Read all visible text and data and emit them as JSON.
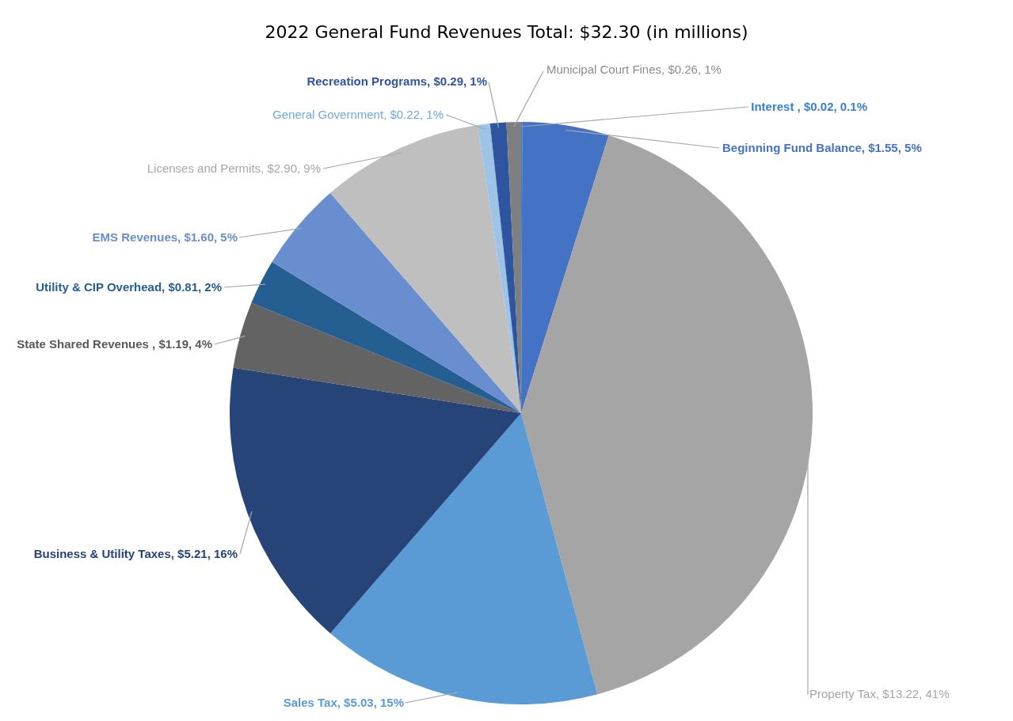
{
  "chart_data": {
    "type": "pie",
    "title": "2022 General Fund Revenues Total: $32.30 (in millions)",
    "categories": [
      "Interest ",
      "Beginning Fund Balance",
      "Property Tax",
      "Sales Tax",
      "Business & Utility Taxes",
      "State Shared Revenues ",
      "Utility & CIP Overhead",
      "EMS Revenues",
      "Licenses and Permits",
      "General Government",
      "Recreation Programs",
      "Municipal Court Fines"
    ],
    "values": [
      0.02,
      1.55,
      13.22,
      5.03,
      5.21,
      1.19,
      0.81,
      1.6,
      2.9,
      0.22,
      0.29,
      0.26
    ],
    "value_labels": [
      "$0.02, 0.1%",
      "$1.55, 5%",
      "$13.22, 41%",
      "$5.03, 15%",
      "$5.21, 16%",
      "$1.19, 4%",
      "$0.81, 2%",
      "$1.60, 5%",
      "$2.90, 9%",
      "$0.22, 1%",
      "$0.29, 1%",
      "$0.26, 1%"
    ],
    "colors": [
      "#3a7fd0",
      "#4472c4",
      "#a5a5a5",
      "#5b9bd5",
      "#264478",
      "#636363",
      "#255e91",
      "#698ed0",
      "#bfbfbf",
      "#9dc3e6",
      "#2f55a0",
      "#7f7f7f"
    ],
    "legend": false
  }
}
